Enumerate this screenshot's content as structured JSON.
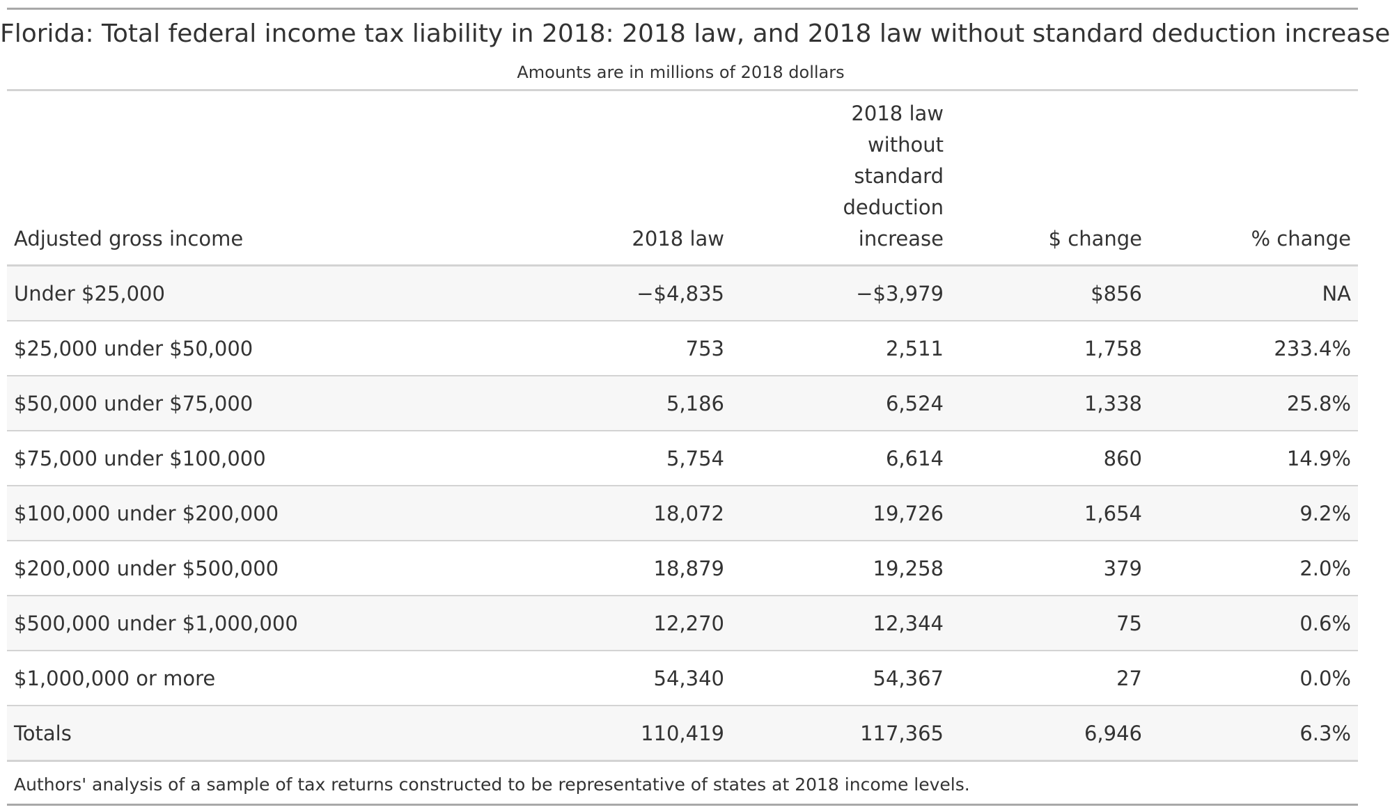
{
  "header": {
    "title": "Florida: Total federal income tax liability in 2018: 2018 law, and 2018 law without standard deduction increase",
    "subtitle": "Amounts are in millions of 2018 dollars"
  },
  "table": {
    "columns": [
      "Adjusted gross income",
      "2018 law",
      "2018 law without standard deduction increase",
      "$ change",
      "% change"
    ],
    "rows": [
      [
        "Under $25,000",
        "−$4,835",
        "−$3,979",
        "$856",
        "NA"
      ],
      [
        "$25,000 under $50,000",
        "753",
        "2,511",
        "1,758",
        "233.4%"
      ],
      [
        "$50,000 under $75,000",
        "5,186",
        "6,524",
        "1,338",
        "25.8%"
      ],
      [
        "$75,000 under $100,000",
        "5,754",
        "6,614",
        "860",
        "14.9%"
      ],
      [
        "$100,000 under $200,000",
        "18,072",
        "19,726",
        "1,654",
        "9.2%"
      ],
      [
        "$200,000 under $500,000",
        "18,879",
        "19,258",
        "379",
        "2.0%"
      ],
      [
        "$500,000 under $1,000,000",
        "12,270",
        "12,344",
        "75",
        "0.6%"
      ],
      [
        "$1,000,000 or more",
        "54,340",
        "54,367",
        "27",
        "0.0%"
      ],
      [
        "Totals",
        "110,419",
        "117,365",
        "6,946",
        "6.3%"
      ]
    ]
  },
  "footer": "Authors' analysis of a sample of tax returns constructed to be representative of states at 2018 income levels."
}
